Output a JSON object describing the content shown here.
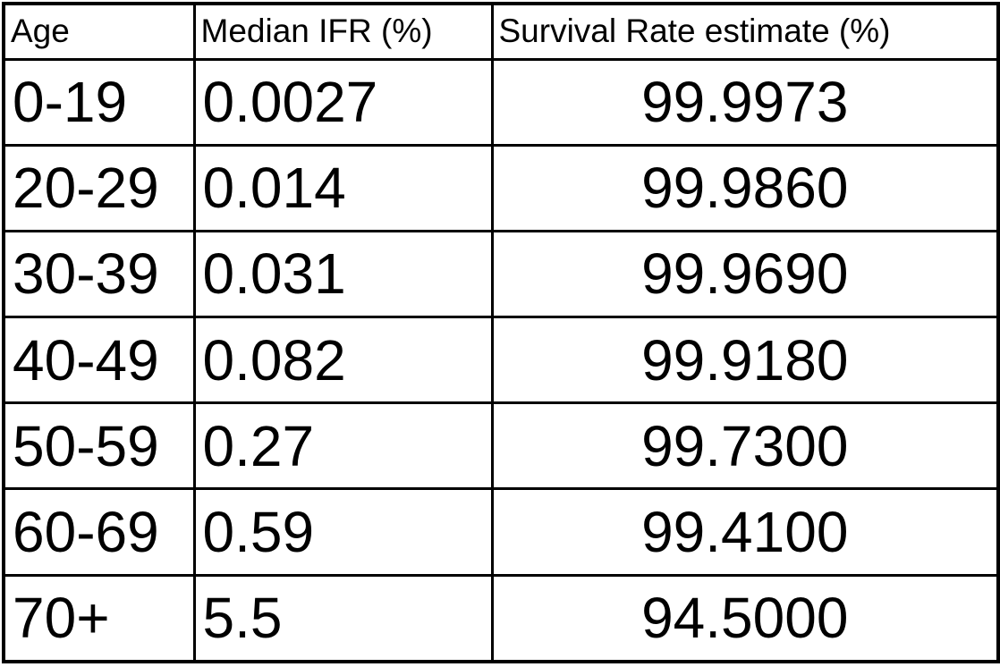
{
  "colors": {
    "background": "#ffffff",
    "border": "#000000",
    "text": "#000000"
  },
  "table": {
    "columns": [
      "Age",
      "Median IFR (%)",
      "Survival Rate estimate (%)"
    ],
    "rows": [
      [
        "0-19",
        "0.0027",
        "99.9973"
      ],
      [
        "20-29",
        "0.014",
        "99.9860"
      ],
      [
        "30-39",
        "0.031",
        "99.9690"
      ],
      [
        "40-49",
        "0.082",
        "99.9180"
      ],
      [
        "50-59",
        "0.27",
        "99.7300"
      ],
      [
        "60-69",
        "0.59",
        "99.4100"
      ],
      [
        "70+",
        "5.5",
        "94.5000"
      ]
    ]
  },
  "chart_data": {
    "type": "table",
    "columns": [
      "Age",
      "Median IFR (%)",
      "Survival Rate estimate (%)"
    ],
    "rows": [
      {
        "age": "0-19",
        "median_ifr_pct": 0.0027,
        "survival_rate_pct": 99.9973
      },
      {
        "age": "20-29",
        "median_ifr_pct": 0.014,
        "survival_rate_pct": 99.986
      },
      {
        "age": "30-39",
        "median_ifr_pct": 0.031,
        "survival_rate_pct": 99.969
      },
      {
        "age": "40-49",
        "median_ifr_pct": 0.082,
        "survival_rate_pct": 99.918
      },
      {
        "age": "50-59",
        "median_ifr_pct": 0.27,
        "survival_rate_pct": 99.73
      },
      {
        "age": "60-69",
        "median_ifr_pct": 0.59,
        "survival_rate_pct": 99.41
      },
      {
        "age": "70+",
        "median_ifr_pct": 5.5,
        "survival_rate_pct": 94.5
      }
    ]
  }
}
